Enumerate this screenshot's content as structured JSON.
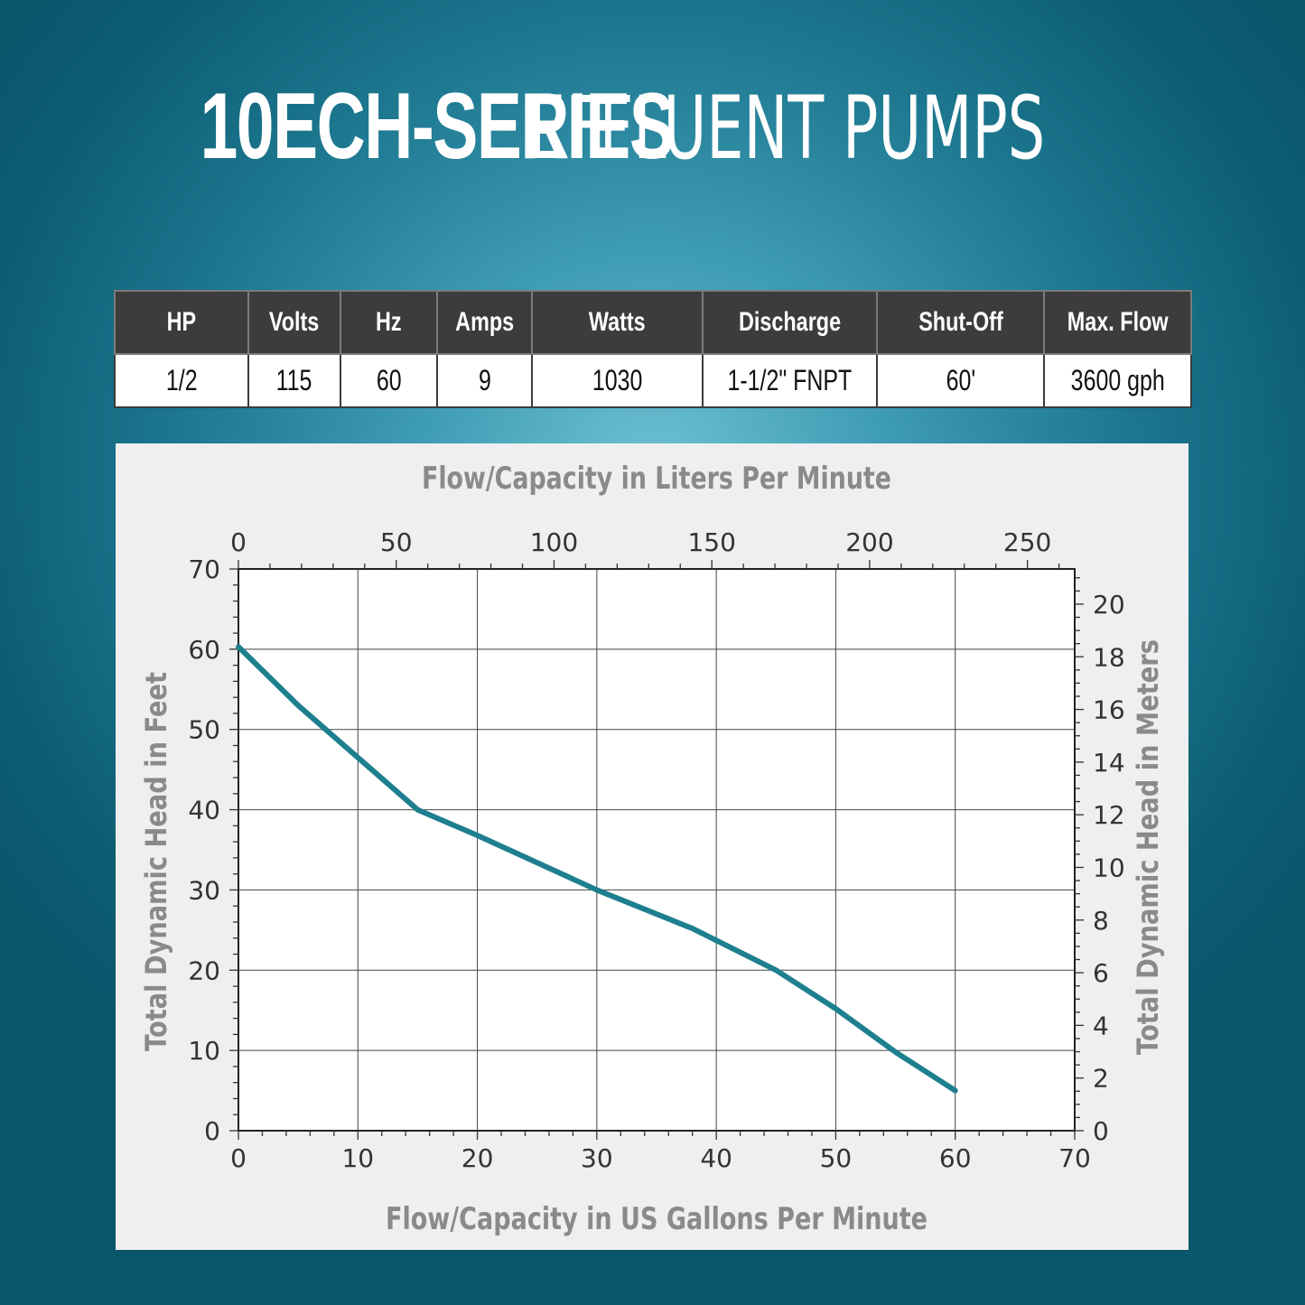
{
  "header": {
    "title_bold": "10ECH-SERIES",
    "title_light": "EFFLUENT PUMPS"
  },
  "specs": {
    "headers": [
      "HP",
      "Volts",
      "Hz",
      "Amps",
      "Watts",
      "Discharge",
      "Shut-Off",
      "Max. Flow"
    ],
    "values": [
      "1/2",
      "115",
      "60",
      "9",
      "1030",
      "1-1/2\" FNPT",
      "60'",
      "3600 gph"
    ]
  },
  "colors": {
    "curve": "#1e7f8f",
    "background_center": "#6ec0d3",
    "background_edge": "#0a566b",
    "table_header": "#3c3c3c"
  },
  "chart_data": {
    "type": "line",
    "title": "",
    "xlabel": "Flow/Capacity in US Gallons Per Minute",
    "ylabel": "Total Dynamic Head in Feet",
    "x2label": "Flow/Capacity in Liters Per Minute",
    "y2label": "Total Dynamic Head in Meters",
    "xlim": [
      0,
      70
    ],
    "ylim": [
      0,
      70
    ],
    "x2lim": [
      0,
      264.98
    ],
    "y2lim": [
      0,
      21.336
    ],
    "xticks": [
      "0",
      "10",
      "20",
      "30",
      "40",
      "50",
      "60",
      "70"
    ],
    "yticks": [
      "0",
      "10",
      "20",
      "30",
      "40",
      "50",
      "60",
      "70"
    ],
    "x2ticks": [
      "0",
      "50",
      "100",
      "150",
      "200",
      "250"
    ],
    "y2ticks": [
      "0",
      "2",
      "4",
      "6",
      "8",
      "10",
      "12",
      "14",
      "16",
      "18",
      "20"
    ],
    "grid": true,
    "legend": "none",
    "series": [
      {
        "x": [
          0,
          5,
          10,
          15,
          20,
          30,
          38,
          45,
          50,
          55,
          60
        ],
        "y": [
          60.3,
          53,
          46.5,
          40,
          36.8,
          30,
          25.2,
          20,
          15.2,
          9.8,
          5
        ]
      }
    ]
  }
}
